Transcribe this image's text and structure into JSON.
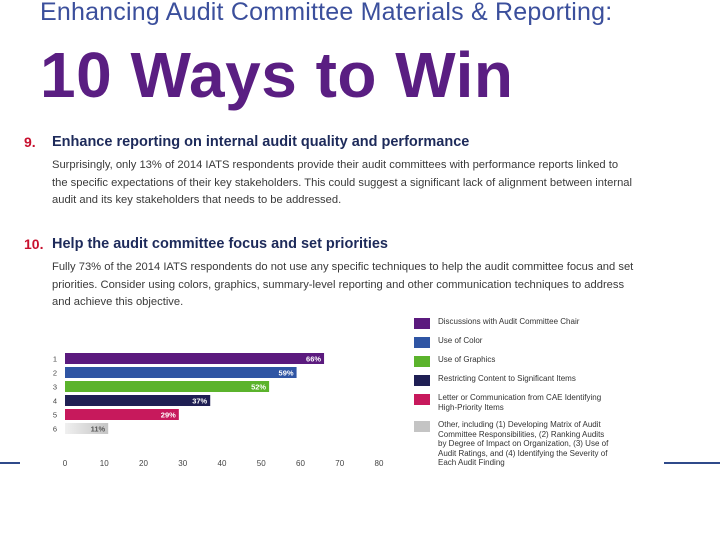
{
  "header": {
    "supertitle": "Enhancing Audit Committee Materials & Reporting:",
    "title": "10 Ways to Win"
  },
  "items": [
    {
      "number": "9.",
      "heading": "Enhance reporting on internal audit quality and performance",
      "lines": [
        "Surprisingly, only 13% of 2014 IATS respondents provide their audit committees with performance reports linked to",
        "the specific expectations of their key stakeholders. This could suggest a significant lack of alignment between internal",
        "audit and its key stakeholders that needs to be addressed."
      ]
    },
    {
      "number": "10.",
      "heading": "Help the audit committee focus and set priorities",
      "lines": [
        "Fully 73% of the 2014 IATS respondents do not use any specific techniques to help the audit committee focus and set",
        "priorities. Consider using colors, graphics, summary-level reporting and other communication techniques to address",
        "and achieve this objective."
      ]
    }
  ],
  "chart_data": {
    "type": "bar",
    "orientation": "horizontal",
    "categories": [
      "1",
      "2",
      "3",
      "4",
      "5",
      "6"
    ],
    "values": [
      66,
      59,
      52,
      37,
      29,
      11
    ],
    "value_labels": [
      "66%",
      "59%",
      "52%",
      "37%",
      "29%",
      "11%"
    ],
    "colors": [
      "#5b1a7e",
      "#2f55a4",
      "#5bb32c",
      "#1f1f54",
      "#c7195c",
      "#c4c4c4"
    ],
    "xlim": [
      0,
      80
    ],
    "xticks": [
      "0",
      "10",
      "20",
      "30",
      "40",
      "50",
      "60",
      "70",
      "80"
    ],
    "grid": false,
    "legend_position": "right",
    "legend": [
      {
        "color": "#5b1a7e",
        "lines": [
          "Discussions with Audit Committee Chair"
        ]
      },
      {
        "color": "#2f55a4",
        "lines": [
          "Use of Color"
        ]
      },
      {
        "color": "#5bb32c",
        "lines": [
          "Use of Graphics"
        ]
      },
      {
        "color": "#1f1f54",
        "lines": [
          "Restricting Content to Significant Items"
        ]
      },
      {
        "color": "#c7195c",
        "lines": [
          "Letter or Communication from CAE Identifying",
          "High-Priority Items"
        ]
      },
      {
        "color": "#c4c4c4",
        "lines": [
          "Other, including (1) Developing Matrix of Audit",
          "Committee Responsibilities, (2) Ranking Audits",
          "by Degree of Impact on Organization, (3) Use of",
          "Audit Ratings, and (4) Identifying the Severity of",
          "Each Audit Finding"
        ]
      }
    ]
  }
}
